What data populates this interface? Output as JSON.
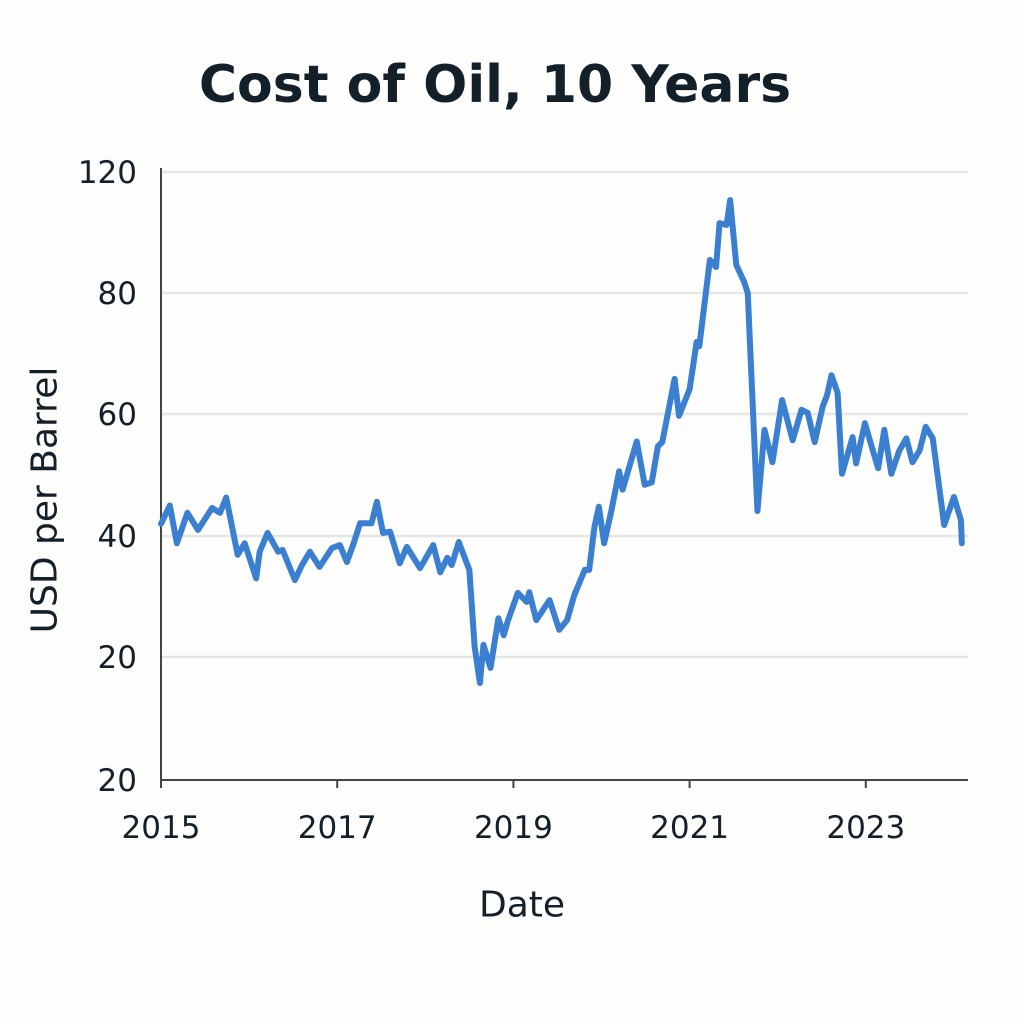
{
  "chart_data": {
    "type": "line",
    "title": "Cost of Oil, 10 Years",
    "xlabel": "Date",
    "ylabel": "USD per Barrel",
    "x_ticks": [
      "2015",
      "2017",
      "2019",
      "2021",
      "2023"
    ],
    "y_ticks": [
      "20",
      "20",
      "40",
      "60",
      "80",
      "120"
    ],
    "grid": "horizontal",
    "legend": "none",
    "line_color": "#3b7fd0",
    "series": [
      {
        "x": [
          2015.0,
          2015.1,
          2015.18,
          2015.3,
          2015.42,
          2015.58,
          2015.67,
          2015.74,
          2015.87,
          2015.95,
          2016.08,
          2016.12,
          2016.21,
          2016.33,
          2016.38,
          2016.52,
          2016.6,
          2016.69,
          2016.8,
          2016.94,
          2017.03,
          2017.11,
          2017.18,
          2017.26,
          2017.39,
          2017.45,
          2017.52,
          2017.6,
          2017.71,
          2017.79,
          2017.94,
          2018.09,
          2018.17,
          2018.25,
          2018.3,
          2018.38,
          2018.5,
          2018.56,
          2018.62,
          2018.66,
          2018.74,
          2018.83,
          2018.89,
          2018.94,
          2019.05,
          2019.15,
          2019.18,
          2019.26,
          2019.41,
          2019.52,
          2019.61,
          2019.69,
          2019.81,
          2019.86,
          2019.92,
          2019.97,
          2020.03,
          2020.11,
          2020.2,
          2020.24,
          2020.4,
          2020.49,
          2020.57,
          2020.64,
          2020.69,
          2020.83,
          2020.88,
          2021.0,
          2021.08,
          2021.11,
          2021.23,
          2021.3,
          2021.34,
          2021.42,
          2021.46,
          2021.53,
          2021.62,
          2021.66,
          2021.77,
          2021.85,
          2021.94,
          2022.05,
          2022.17,
          2022.27,
          2022.34,
          2022.42,
          2022.51,
          2022.56,
          2022.61,
          2022.68,
          2022.73,
          2022.85,
          2022.89,
          2022.99,
          2023.07,
          2023.14,
          2023.21,
          2023.29,
          2023.38,
          2023.46,
          2023.53,
          2023.61,
          2023.68,
          2023.76,
          2023.89,
          2024.0,
          2024.08,
          2024.09
        ],
        "y": [
          42.0,
          45.0,
          38.8,
          43.8,
          41.0,
          44.6,
          43.8,
          46.3,
          36.9,
          38.8,
          33.0,
          37.4,
          40.5,
          37.4,
          37.7,
          32.7,
          35.2,
          37.4,
          34.9,
          38.0,
          38.5,
          35.7,
          38.5,
          42.1,
          42.1,
          45.6,
          40.5,
          40.7,
          35.5,
          38.2,
          34.7,
          38.5,
          34.0,
          36.4,
          35.2,
          39.0,
          34.4,
          21.7,
          15.7,
          22.0,
          18.2,
          26.4,
          23.6,
          26.1,
          30.6,
          29.1,
          30.7,
          26.1,
          29.4,
          24.5,
          26.1,
          30.2,
          34.4,
          34.4,
          41.5,
          44.8,
          38.8,
          44.0,
          50.6,
          47.6,
          55.5,
          48.4,
          48.8,
          54.7,
          55.4,
          65.8,
          59.7,
          64.1,
          71.9,
          71.2,
          90.9,
          88.6,
          103.1,
          102.5,
          110.7,
          89.3,
          83.6,
          80.0,
          44.1,
          57.4,
          52.1,
          62.3,
          55.7,
          60.7,
          60.2,
          55.4,
          61.2,
          63.1,
          66.4,
          63.5,
          50.2,
          56.2,
          51.9,
          58.5,
          54.5,
          51.1,
          57.4,
          50.2,
          54.0,
          56.0,
          52.1,
          54.0,
          57.9,
          56.0,
          41.8,
          46.4,
          42.6,
          38.8
        ]
      }
    ]
  }
}
